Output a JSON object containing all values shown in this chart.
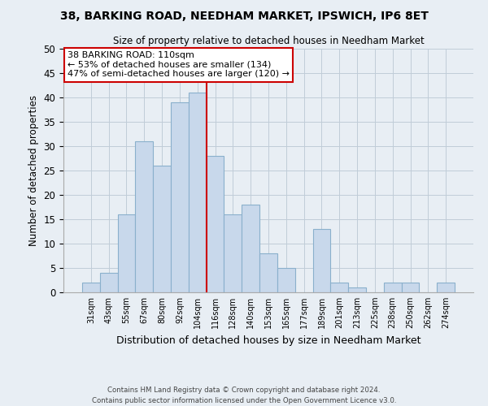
{
  "title": "38, BARKING ROAD, NEEDHAM MARKET, IPSWICH, IP6 8ET",
  "subtitle": "Size of property relative to detached houses in Needham Market",
  "xlabel": "Distribution of detached houses by size in Needham Market",
  "ylabel": "Number of detached properties",
  "bin_labels": [
    "31sqm",
    "43sqm",
    "55sqm",
    "67sqm",
    "80sqm",
    "92sqm",
    "104sqm",
    "116sqm",
    "128sqm",
    "140sqm",
    "153sqm",
    "165sqm",
    "177sqm",
    "189sqm",
    "201sqm",
    "213sqm",
    "225sqm",
    "238sqm",
    "250sqm",
    "262sqm",
    "274sqm"
  ],
  "bar_heights": [
    2,
    4,
    16,
    31,
    26,
    39,
    41,
    28,
    16,
    18,
    8,
    5,
    0,
    13,
    2,
    1,
    0,
    2,
    2,
    0,
    2
  ],
  "bar_color": "#c8d8eb",
  "bar_edge_color": "#8ab0cc",
  "annotation_title": "38 BARKING ROAD: 110sqm",
  "annotation_line1": "← 53% of detached houses are smaller (134)",
  "annotation_line2": "47% of semi-detached houses are larger (120) →",
  "vline_x_index": 6.5,
  "vline_color": "#cc0000",
  "annotation_box_color": "#ffffff",
  "annotation_box_edge": "#cc0000",
  "ylim": [
    0,
    50
  ],
  "yticks": [
    0,
    5,
    10,
    15,
    20,
    25,
    30,
    35,
    40,
    45,
    50
  ],
  "footer_line1": "Contains HM Land Registry data © Crown copyright and database right 2024.",
  "footer_line2": "Contains public sector information licensed under the Open Government Licence v3.0.",
  "bg_color": "#e8eef4",
  "plot_bg_color": "#e8eef4",
  "grid_color": "#c0ccd8"
}
